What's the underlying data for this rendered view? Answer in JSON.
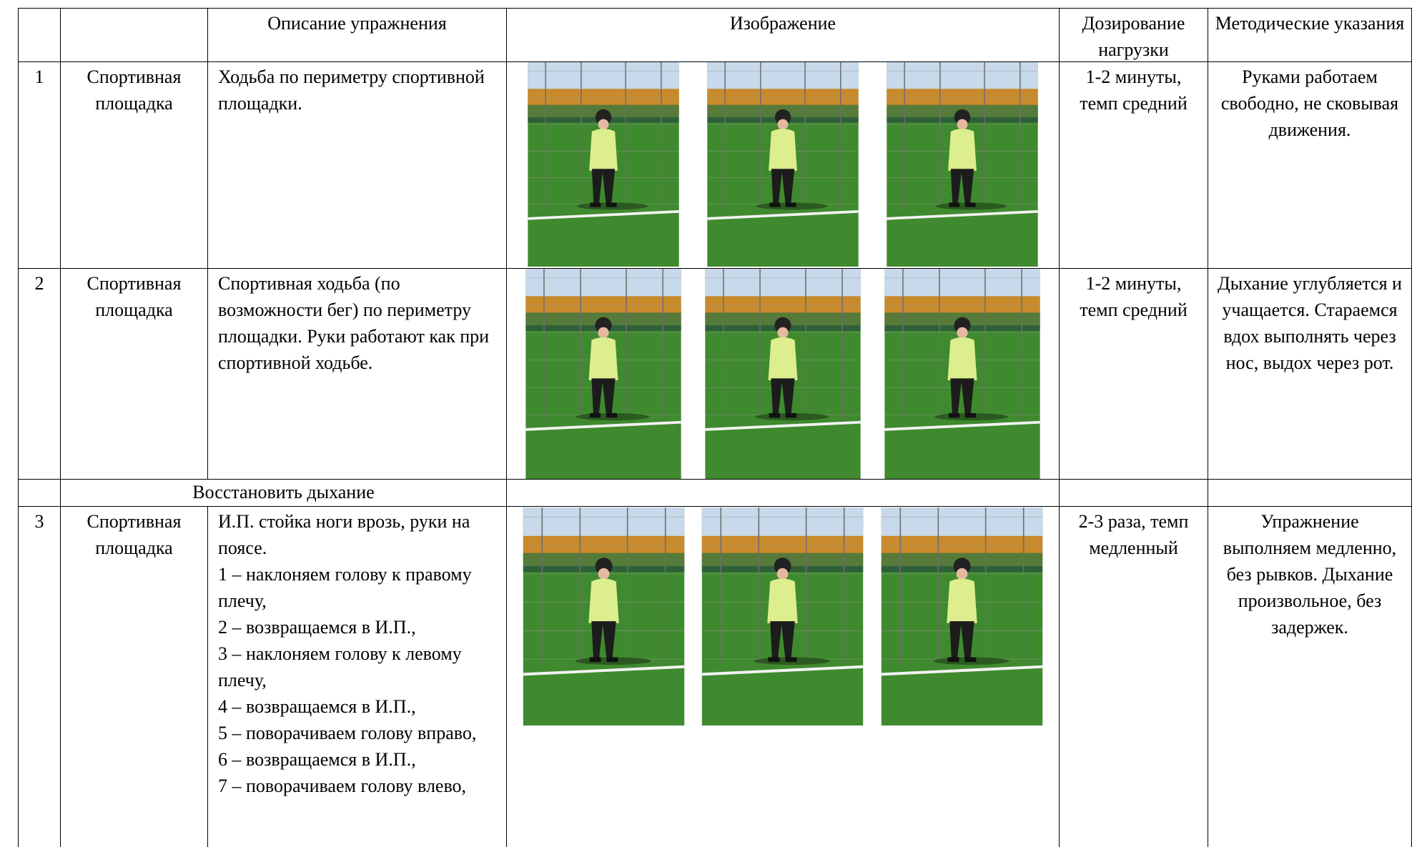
{
  "table": {
    "header": {
      "description": "Описание упражнения",
      "image": "Изображение",
      "dosage": "Дозирование нагрузки",
      "notes": "Методические указания"
    },
    "rows": [
      {
        "number": "1",
        "place": "Спортивная площадка",
        "description": [
          "Ходьба по периметру спортивной площадки."
        ],
        "dosage": "1-2 минуты, темп средний",
        "notes": "Руками работаем свободно, не сковывая движения."
      },
      {
        "number": "2",
        "place": "Спортивная площадка",
        "description": [
          "Спортивная ходьба (по возможности бег) по периметру площадки. Руки работают как при спортивной ходьбе."
        ],
        "dosage": "1-2 минуты, темп средний",
        "notes": "Дыхание углубляется и учащается. Стараемся вдох выполнять через нос, выдох через рот."
      },
      {
        "note": "Восстановить дыхание"
      },
      {
        "number": "3",
        "place": "Спортивная площадка",
        "description": [
          "И.П. стойка ноги врозь, руки на поясе.",
          "1 – наклоняем голову к правому плечу,",
          "2 – возвращаемся в И.П.,",
          "3 – наклоняем голову к левому плечу,",
          "4 – возвращаемся в И.П.,",
          "5 – поворачиваем голову вправо,",
          "6 – возвращаемся в И.П.,",
          "7 – поворачиваем голову влево,"
        ],
        "dosage": "2-3 раза, темп медленный",
        "notes": "Упражнение выполняем медленно, без рывков. Дыхание произвольное, без задержек."
      }
    ]
  }
}
